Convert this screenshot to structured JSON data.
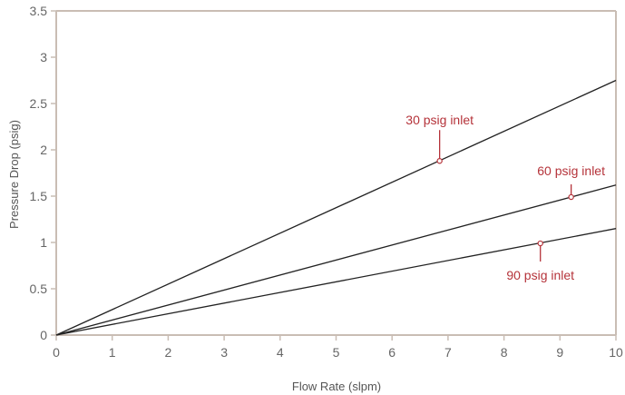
{
  "chart_data": {
    "type": "line",
    "title": "",
    "xlabel": "Flow Rate (slpm)",
    "ylabel": "Pressure Drop (psig)",
    "xlim": [
      0,
      10
    ],
    "ylim": [
      0,
      3.5
    ],
    "x_ticks": [
      "0",
      "1",
      "2",
      "3",
      "4",
      "5",
      "6",
      "7",
      "8",
      "9",
      "10"
    ],
    "y_ticks": [
      "0",
      "0.5",
      "1",
      "1.5",
      "2",
      "2.5",
      "3",
      "3.5"
    ],
    "grid": false,
    "series": [
      {
        "name": "30 psig inlet",
        "x": [
          0,
          10
        ],
        "y": [
          0,
          2.75
        ]
      },
      {
        "name": "60 psig inlet",
        "x": [
          0,
          10
        ],
        "y": [
          0,
          1.62
        ]
      },
      {
        "name": "90 psig inlet",
        "x": [
          0,
          10
        ],
        "y": [
          0,
          1.15
        ]
      }
    ],
    "annotations": [
      {
        "text": "30 psig inlet",
        "x": 6.85,
        "y": 1.88
      },
      {
        "text": "60 psig inlet",
        "x": 9.2,
        "y": 1.49
      },
      {
        "text": "90 psig inlet",
        "x": 8.65,
        "y": 0.99
      }
    ],
    "colors": {
      "line": "#222222",
      "axis": "#c9bdb4",
      "annotation": "#b5333a",
      "tick_text": "#666666"
    }
  }
}
